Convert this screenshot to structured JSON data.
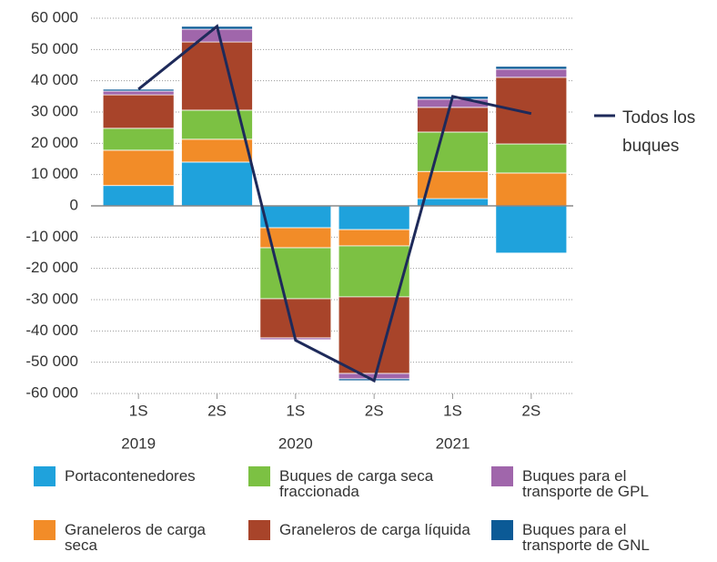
{
  "chart_data": {
    "type": "stacked-bar-line",
    "categories": [
      "1S",
      "2S",
      "1S",
      "2S",
      "1S",
      "2S"
    ],
    "years": [
      "2019",
      "2020",
      "2021"
    ],
    "series": [
      {
        "name": "Portacontenedores",
        "color": "#1fa2dc",
        "values": [
          6500,
          14000,
          -7000,
          -7600,
          2300,
          -15100
        ]
      },
      {
        "name": "Graneleros de carga seca",
        "color": "#f28c28",
        "values": [
          11300,
          7300,
          -6400,
          -5200,
          8700,
          10500
        ]
      },
      {
        "name": "Buques de carga seca fraccionada",
        "color": "#7cc143",
        "values": [
          7000,
          9300,
          -16300,
          -16300,
          12600,
          9300
        ]
      },
      {
        "name": "Graneleros de carga líquida",
        "color": "#a8442a",
        "values": [
          10700,
          21800,
          -12500,
          -24500,
          7900,
          21300
        ]
      },
      {
        "name": "Buques para el transporte de GPL",
        "color": "#a066ab",
        "values": [
          1200,
          4100,
          -600,
          -1700,
          2600,
          2600
        ]
      },
      {
        "name": "Buques para el transporte de GNL",
        "color": "#0b5a96",
        "values": [
          600,
          900,
          -200,
          -600,
          900,
          900
        ]
      }
    ],
    "line": {
      "name": "Todos los buques",
      "color": "#1e2a5a",
      "values": [
        37300,
        57400,
        -43000,
        -55900,
        35000,
        29500
      ]
    },
    "ylim": [
      -60000,
      60000
    ],
    "yticks": [
      {
        "value": -60000,
        "label": "-60 000"
      },
      {
        "value": -50000,
        "label": "-50 000"
      },
      {
        "value": -40000,
        "label": "-40 000"
      },
      {
        "value": -30000,
        "label": "-30 000"
      },
      {
        "value": -20000,
        "label": "-20 000"
      },
      {
        "value": -10000,
        "label": "-10 000"
      },
      0,
      {
        "value": 10000,
        "label": "10 000"
      },
      {
        "value": 20000,
        "label": "20 000"
      },
      {
        "value": 30000,
        "label": "30 000"
      },
      {
        "value": 40000,
        "label": "40 000"
      },
      {
        "value": 50000,
        "label": "50 000"
      },
      {
        "value": 60000,
        "label": "60 000"
      }
    ],
    "grid": true
  }
}
